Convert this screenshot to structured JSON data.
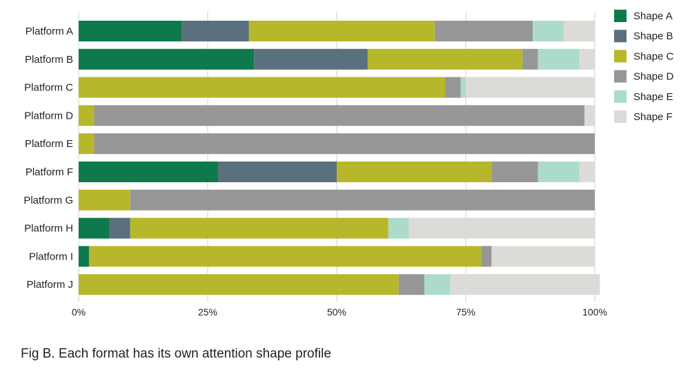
{
  "chart_data": {
    "type": "bar",
    "orientation": "horizontal",
    "stacked": true,
    "categories": [
      "Platform A",
      "Platform B",
      "Platform C",
      "Platform D",
      "Platform E",
      "Platform F",
      "Platform G",
      "Platform H",
      "Platform I",
      "Platform J"
    ],
    "series": [
      {
        "name": "Shape A",
        "color": "#0e7a4c",
        "values": [
          20,
          34,
          0,
          0,
          0,
          27,
          0,
          6,
          2,
          0
        ]
      },
      {
        "name": "Shape B",
        "color": "#5b707e",
        "values": [
          13,
          22,
          0,
          0,
          0,
          23,
          0,
          4,
          0,
          0
        ]
      },
      {
        "name": "Shape C",
        "color": "#b7b72c",
        "values": [
          36,
          30,
          71,
          3,
          3,
          30,
          10,
          50,
          76,
          62
        ]
      },
      {
        "name": "Shape D",
        "color": "#979797",
        "values": [
          19,
          3,
          3,
          95,
          97,
          9,
          90,
          0,
          2,
          5
        ]
      },
      {
        "name": "Shape E",
        "color": "#acdcc9",
        "values": [
          6,
          8,
          1,
          0,
          0,
          8,
          0,
          4,
          0,
          5
        ]
      },
      {
        "name": "Shape F",
        "color": "#dddbd8",
        "values": [
          6,
          3,
          25,
          2,
          0,
          3,
          0,
          36,
          20,
          29
        ]
      }
    ],
    "xlim": [
      0,
      100
    ],
    "xticks": [
      "0%",
      "25%",
      "50%",
      "75%",
      "100%"
    ],
    "grid": true,
    "legend_position": "right",
    "title": "",
    "xlabel": "",
    "ylabel": ""
  },
  "caption": "Fig B. Each format has its own attention shape profile"
}
